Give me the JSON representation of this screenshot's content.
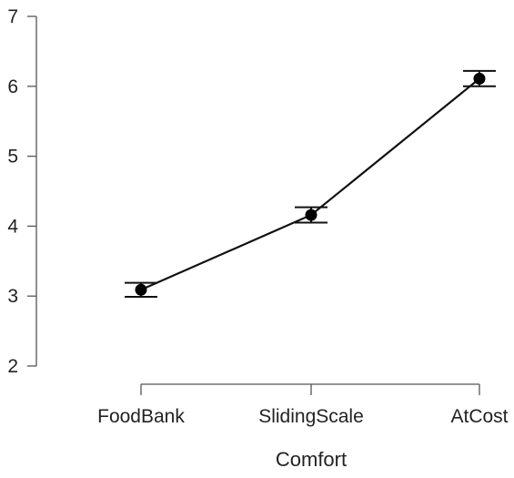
{
  "chart_data": {
    "type": "line",
    "title": "",
    "xlabel": "Comfort",
    "ylabel": "",
    "categories": [
      "FoodBank",
      "SlidingScale",
      "AtCost"
    ],
    "series": [
      {
        "values": [
          3.09,
          4.16,
          6.11
        ],
        "error_lower": [
          2.99,
          4.05,
          6.0
        ],
        "error_upper": [
          3.19,
          4.27,
          6.22
        ]
      }
    ],
    "ylim": [
      2,
      7
    ],
    "yticks": [
      "2",
      "3",
      "4",
      "5",
      "6",
      "7"
    ],
    "grid": false,
    "line_color": "#111111",
    "marker_color": "#000000"
  }
}
